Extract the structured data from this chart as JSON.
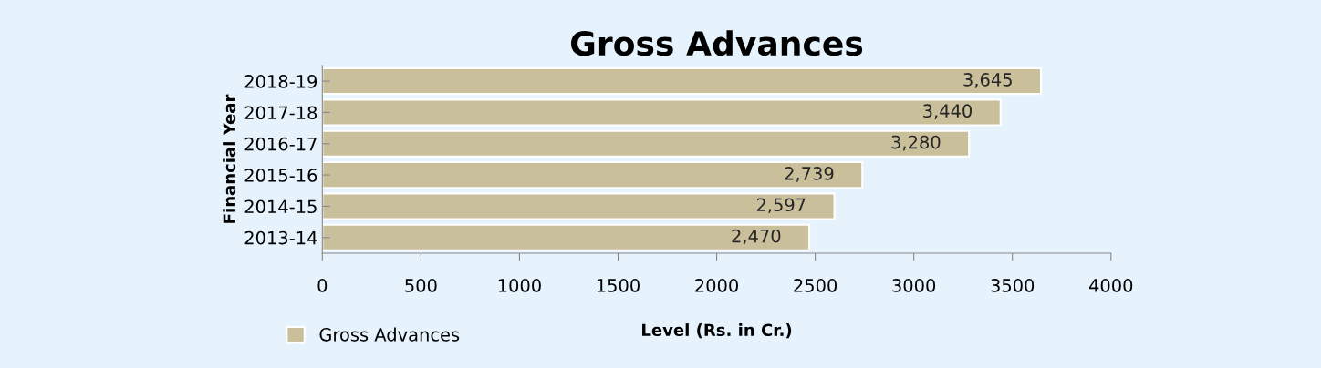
{
  "chart_data": {
    "type": "bar",
    "orientation": "horizontal",
    "title": "Gross Advances",
    "categories": [
      "2018-19",
      "2017-18",
      "2016-17",
      "2015-16",
      "2014-15",
      "2013-14"
    ],
    "series": [
      {
        "name": "Gross Advances",
        "color": "#c9bf9b",
        "values": [
          3645,
          3440,
          3280,
          2739,
          2597,
          2470
        ]
      }
    ],
    "value_labels": [
      "3,645",
      "3,440",
      "3,280",
      "2,739",
      "2,597",
      "2,470"
    ],
    "xlabel": "Level (Rs. in Cr.)",
    "ylabel": "Financial Year",
    "xlim": [
      0,
      4000
    ],
    "xticks": [
      0,
      500,
      1000,
      1500,
      2000,
      2500,
      3000,
      3500,
      4000
    ],
    "grid": false,
    "legend": "bottom left"
  }
}
